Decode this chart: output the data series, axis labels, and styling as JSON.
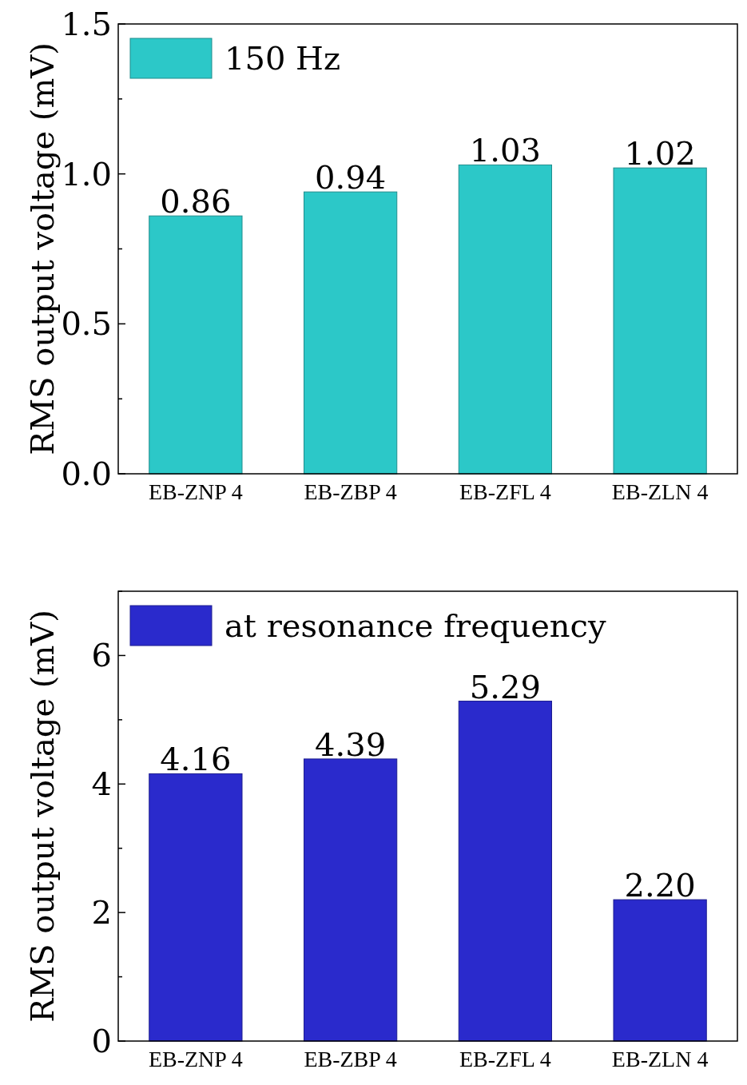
{
  "chart_data": [
    {
      "type": "bar",
      "categories": [
        "EB-ZNP 4",
        "EB-ZBP 4",
        "EB-ZFL 4",
        "EB-ZLN 4"
      ],
      "ylabel": "RMS output voltage (mV)",
      "ylim": [
        0,
        1.5
      ],
      "yticks": [
        {
          "value": 0,
          "label": "0.0"
        },
        {
          "value": 0.25,
          "label": null
        },
        {
          "value": 0.5,
          "label": "0.5"
        },
        {
          "value": 0.75,
          "label": null
        },
        {
          "value": 1,
          "label": "1.0"
        },
        {
          "value": 1.25,
          "label": null
        },
        {
          "value": 1.5,
          "label": "1.5"
        }
      ],
      "legend": "top left",
      "data_labels": true,
      "series": [
        {
          "name": "150 Hz",
          "color": "#2cc8c8",
          "values": [
            0.86,
            0.94,
            1.03,
            1.02
          ]
        }
      ]
    },
    {
      "type": "bar",
      "categories": [
        "EB-ZNP 4",
        "EB-ZBP 4",
        "EB-ZFL 4",
        "EB-ZLN 4"
      ],
      "ylabel": "RMS output voltage (mV)",
      "ylim": [
        0,
        7
      ],
      "yticks": [
        0,
        {
          "value": 1,
          "label": null
        },
        2,
        {
          "value": 3,
          "label": null
        },
        4,
        {
          "value": 5,
          "label": null
        },
        6,
        {
          "value": 7,
          "label": null
        }
      ],
      "legend": "top left",
      "value_labels": [
        "4.16",
        "4.39",
        "5.29",
        "2.20"
      ],
      "series": [
        {
          "name": "at resonance frequency",
          "color": "#2a2acc",
          "values": [
            4.16,
            4.39,
            5.29,
            2.2
          ]
        }
      ]
    }
  ]
}
